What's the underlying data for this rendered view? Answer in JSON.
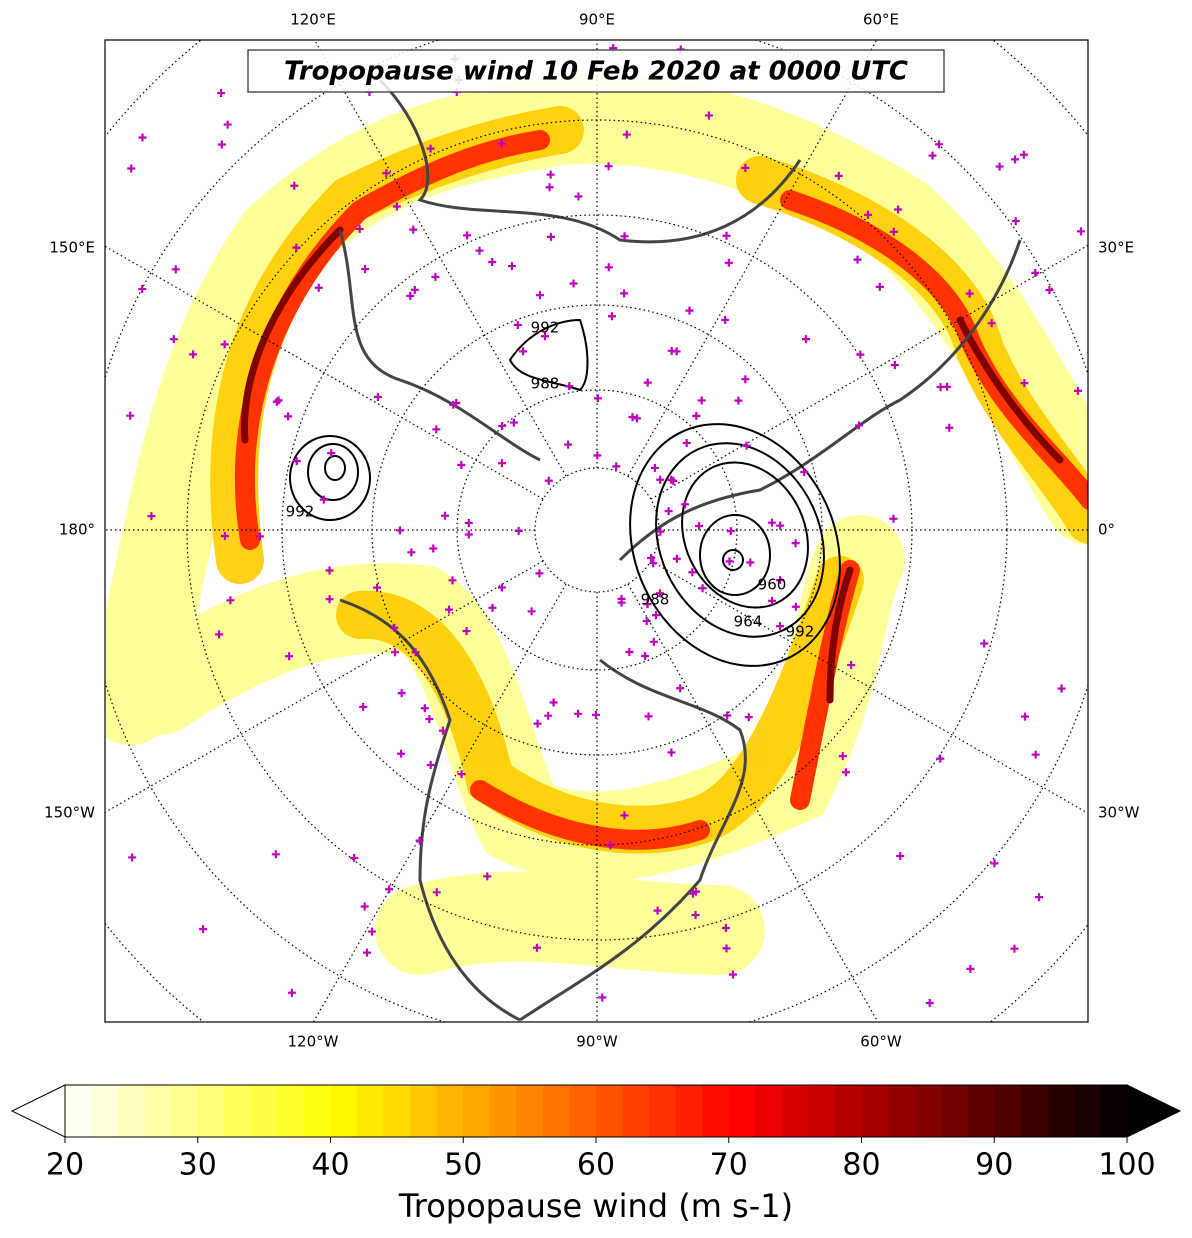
{
  "map": {
    "title": "Tropopause wind 10 Feb 2020 at 0000 UTC",
    "lon_labels_top": [
      "120°E",
      "90°E",
      "60°E"
    ],
    "lon_labels_bottom": [
      "120°W",
      "90°W",
      "60°W"
    ],
    "lon_labels_left": [
      "150°E",
      "180°",
      "150°W"
    ],
    "lon_labels_right": [
      "30°E",
      "0°",
      "30°W"
    ],
    "contour_labels": [
      "992",
      "988",
      "988",
      "992",
      "960",
      "964",
      "992"
    ]
  },
  "colorbar": {
    "label": "Tropopause wind (m s-1)",
    "lim": [
      20,
      100
    ],
    "ticks": [
      20,
      30,
      40,
      50,
      60,
      70,
      80,
      90,
      100
    ],
    "step": 2,
    "cmap": "hot_r",
    "extend": "both"
  }
}
